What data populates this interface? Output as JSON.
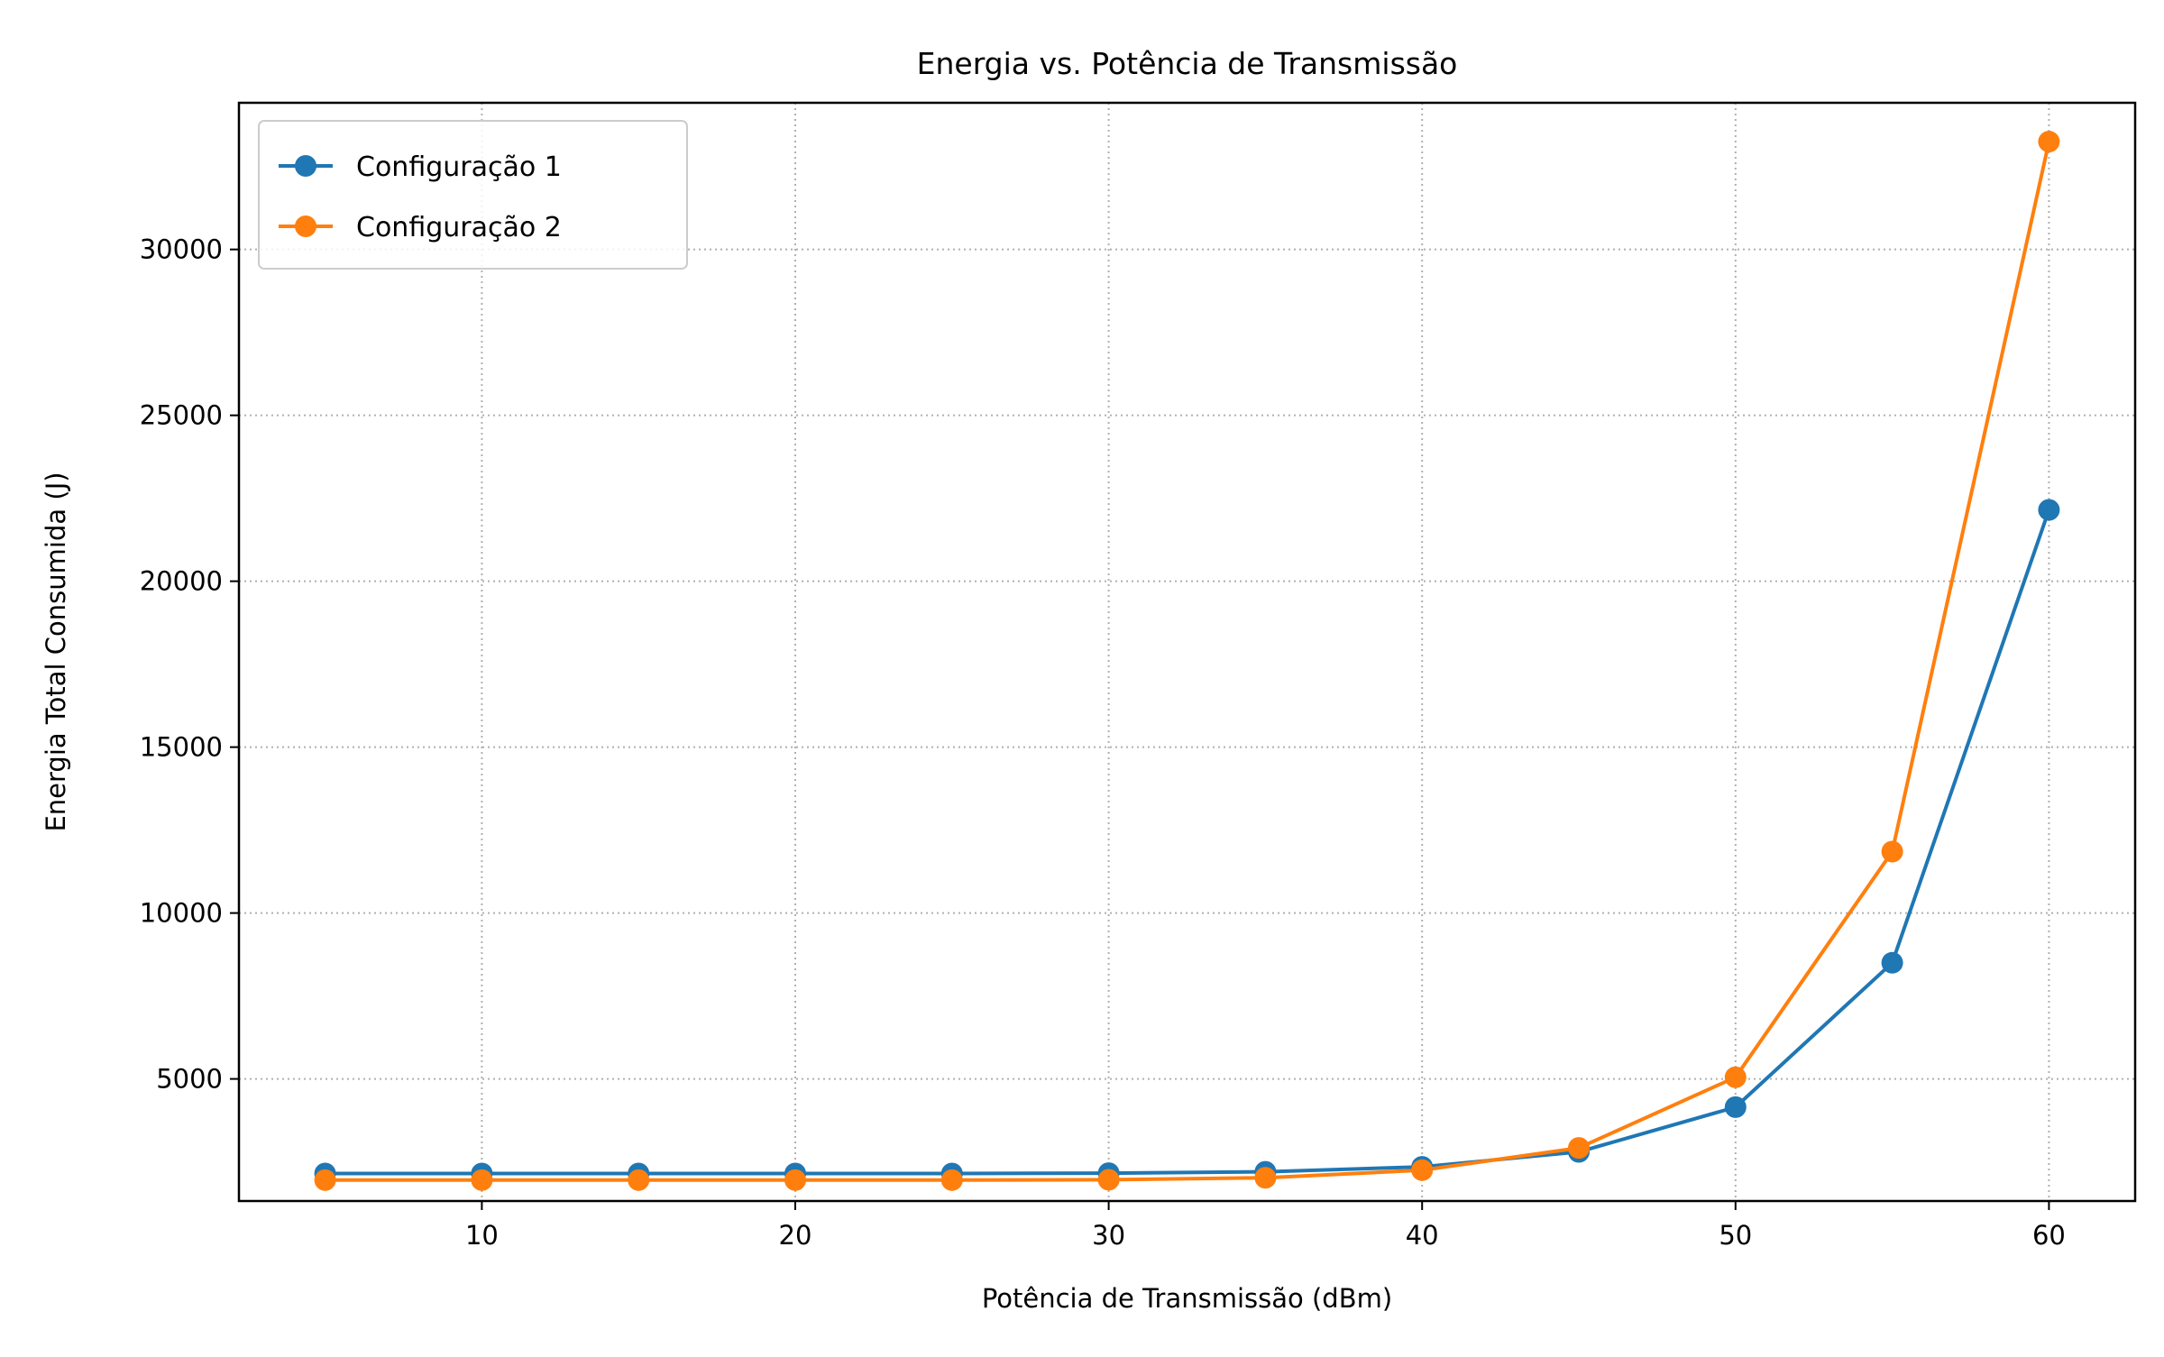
{
  "chart_data": {
    "type": "line",
    "title": "Energia vs. Potência de Transmissão",
    "xlabel": "Potência de Transmissão (dBm)",
    "ylabel": "Energia Total Consumida (J)",
    "x": [
      5,
      10,
      15,
      20,
      25,
      30,
      35,
      40,
      45,
      50,
      55,
      60
    ],
    "xlim": [
      2.25,
      62.75
    ],
    "ylim": [
      1320,
      34420
    ],
    "x_ticks": [
      10,
      20,
      30,
      40,
      50,
      60
    ],
    "y_ticks": [
      5000,
      10000,
      15000,
      20000,
      25000,
      30000
    ],
    "grid": true,
    "grid_style": "dotted",
    "legend_position": "top-left",
    "markers": "circle",
    "series": [
      {
        "name": "Configuração 1",
        "color": "#1f77b4",
        "values": [
          2150,
          2150,
          2150,
          2150,
          2150,
          2160,
          2200,
          2350,
          2800,
          4150,
          8500,
          22150
        ]
      },
      {
        "name": "Configuração 2",
        "color": "#ff7f0e",
        "values": [
          1950,
          1950,
          1950,
          1950,
          1950,
          1960,
          2020,
          2250,
          2920,
          5050,
          11850,
          33250
        ]
      }
    ]
  }
}
